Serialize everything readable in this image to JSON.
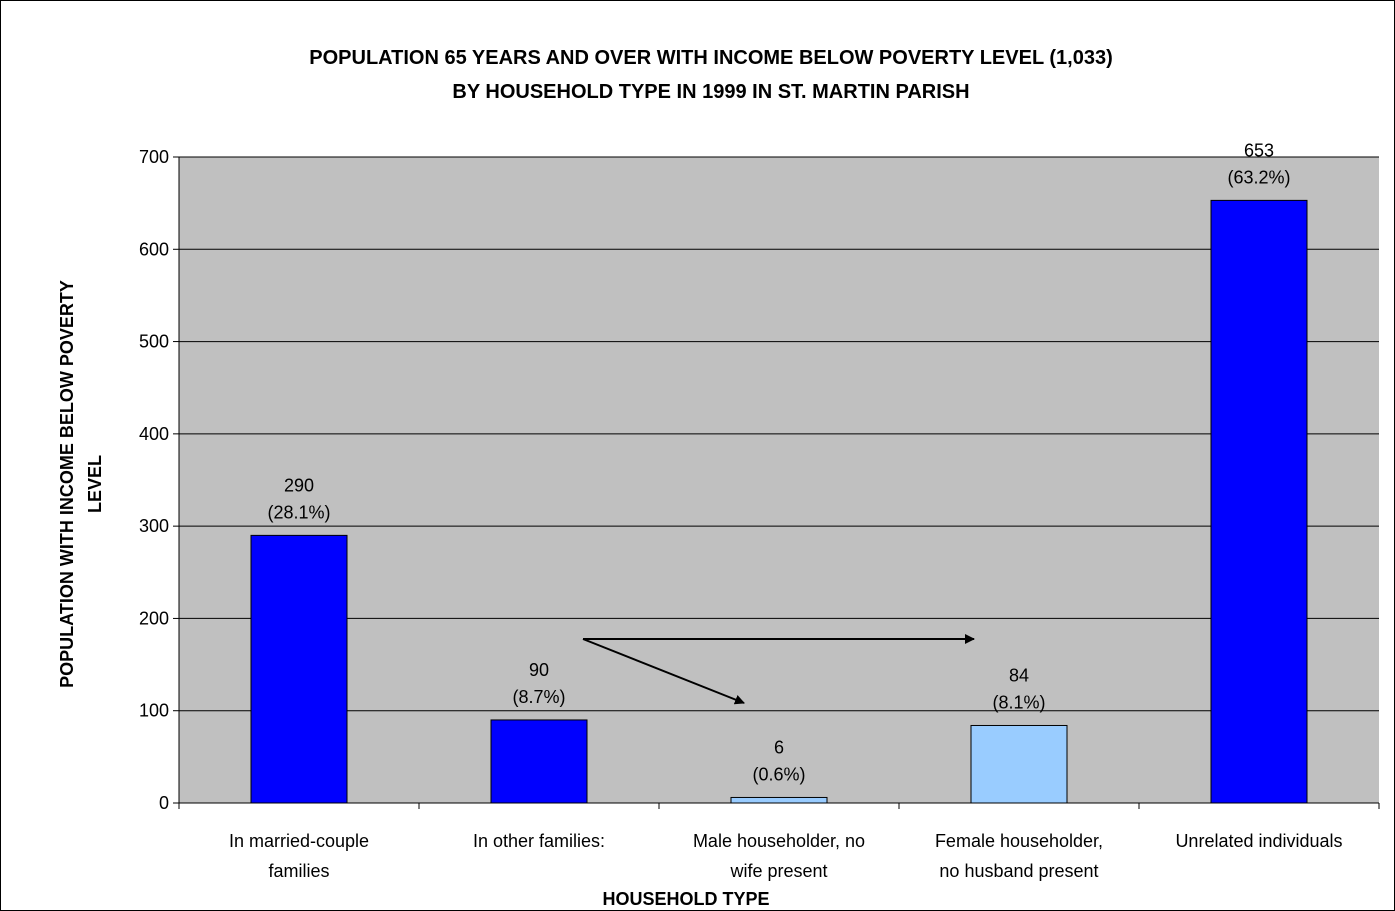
{
  "chart_data": {
    "type": "bar",
    "title_lines": [
      "POPULATION 65 YEARS AND OVER WITH INCOME BELOW POVERTY LEVEL (1,033)",
      "BY HOUSEHOLD TYPE IN 1999 IN ST. MARTIN PARISH"
    ],
    "xlabel": "HOUSEHOLD TYPE",
    "ylabel_lines": [
      "POPULATION WITH INCOME BELOW POVERTY",
      "LEVEL"
    ],
    "categories": [
      [
        "In married-couple",
        "families"
      ],
      [
        "In other families:"
      ],
      [
        "Male householder, no",
        "wife present"
      ],
      [
        "Female householder,",
        "no husband present"
      ],
      [
        "Unrelated individuals"
      ]
    ],
    "values": [
      290,
      90,
      6,
      84,
      653
    ],
    "percent_labels": [
      "(28.1%)",
      "(8.7%)",
      "(0.6%)",
      "(8.1%)",
      "(63.2%)"
    ],
    "bar_colors": [
      "#0000ff",
      "#0000ff",
      "#99ccff",
      "#99ccff",
      "#0000ff"
    ],
    "ylim": [
      0,
      700
    ],
    "yticks": [
      0,
      100,
      200,
      300,
      400,
      500,
      600,
      700
    ],
    "grid": true,
    "plot_background": "#c0c0c0",
    "annotations": "two arrows from 'In other families:' pointing to its two sub-categories"
  }
}
